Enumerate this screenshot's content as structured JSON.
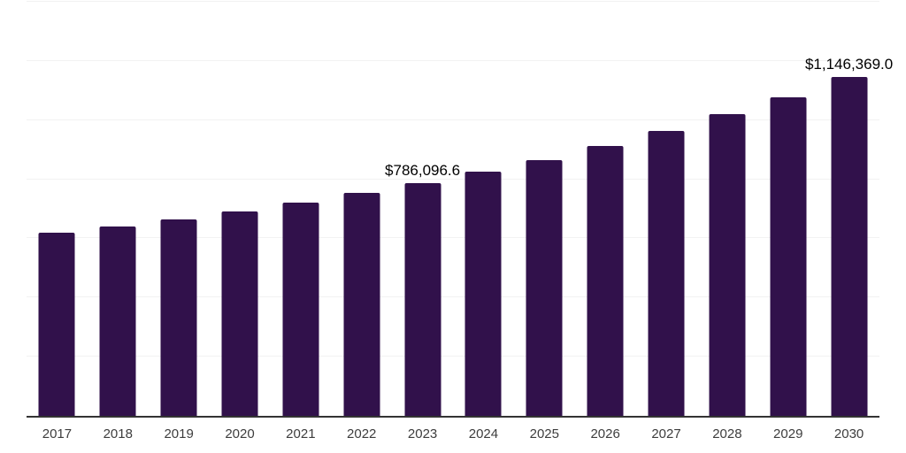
{
  "chart": {
    "bar_color": "#31114B",
    "grid_color": "#f2f2f2",
    "axis_color": "#333333",
    "tick_label_color": "#3d3d3d",
    "data_label_color": "#000000"
  },
  "chart_data": {
    "type": "bar",
    "title": "",
    "xlabel": "",
    "ylabel": "",
    "categories": [
      "2017",
      "2018",
      "2019",
      "2020",
      "2021",
      "2022",
      "2023",
      "2024",
      "2025",
      "2026",
      "2027",
      "2028",
      "2029",
      "2030"
    ],
    "values": [
      618000,
      639000,
      663000,
      691500,
      720000,
      753000,
      786096.6,
      824500,
      865000,
      912500,
      962000,
      1020000,
      1078000,
      1146369.0
    ],
    "data_labels": {
      "2023": "$786,096.6",
      "2030": "$1,146,369.0"
    },
    "ylim": [
      0,
      1400000
    ],
    "grid_step": 200000,
    "grid": true,
    "y_axis_labels_visible": false,
    "legend": false
  }
}
